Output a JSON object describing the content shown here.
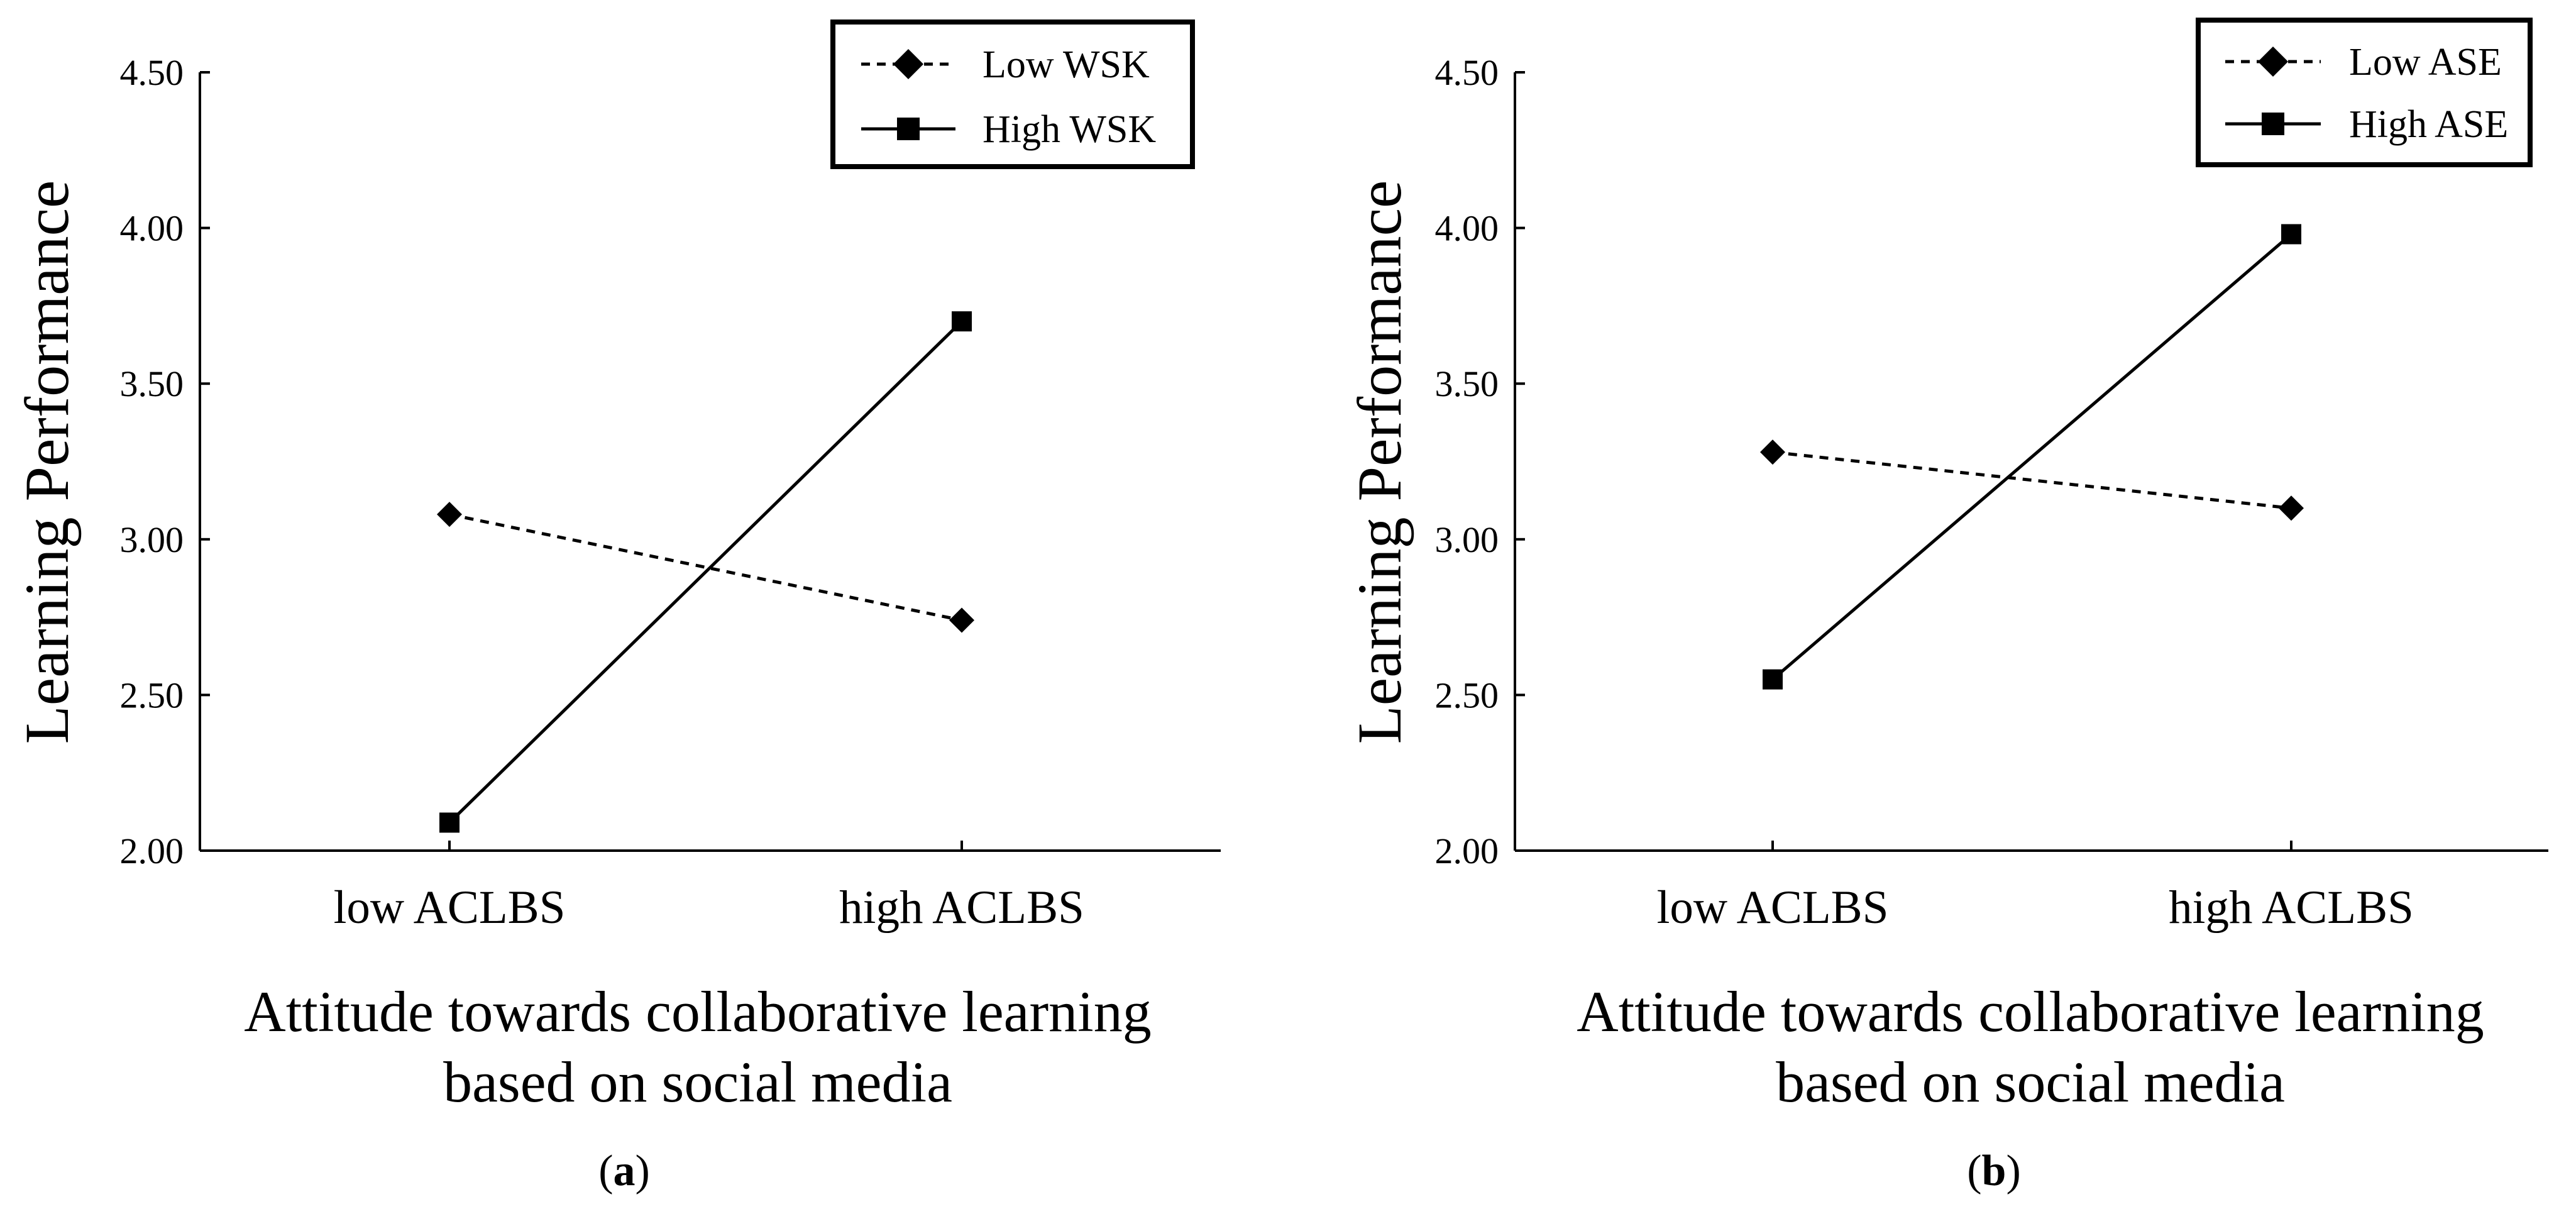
{
  "chart_data": [
    {
      "type": "line",
      "panel_label": "a",
      "categories": [
        "low ACLBS",
        "high ACLBS"
      ],
      "series": [
        {
          "name": "Low WSK",
          "marker": "diamond",
          "line_style": "dashed",
          "values": [
            3.08,
            2.74
          ]
        },
        {
          "name": "High WSK",
          "marker": "square",
          "line_style": "solid",
          "values": [
            2.09,
            3.7
          ]
        }
      ],
      "ylabel": "Learning Performance",
      "xlabel_lines": [
        "Attitude towards collaborative learning",
        "based on social media"
      ],
      "yticks": [
        "2.00",
        "2.50",
        "3.00",
        "3.50",
        "4.00",
        "4.50"
      ],
      "ylim": [
        2.0,
        4.5
      ],
      "legend_position": "top-right",
      "grid": false
    },
    {
      "type": "line",
      "panel_label": "b",
      "categories": [
        "low ACLBS",
        "high ACLBS"
      ],
      "series": [
        {
          "name": "Low ASE",
          "marker": "diamond",
          "line_style": "dashed",
          "values": [
            3.28,
            3.1
          ]
        },
        {
          "name": "High ASE",
          "marker": "square",
          "line_style": "solid",
          "values": [
            2.55,
            3.98
          ]
        }
      ],
      "ylabel": "Learning Performance",
      "xlabel_lines": [
        "Attitude towards collaborative learning",
        "based on social media"
      ],
      "yticks": [
        "2.00",
        "2.50",
        "3.00",
        "3.50",
        "4.00",
        "4.50"
      ],
      "ylim": [
        2.0,
        4.5
      ],
      "legend_position": "top-right",
      "grid": false
    }
  ]
}
